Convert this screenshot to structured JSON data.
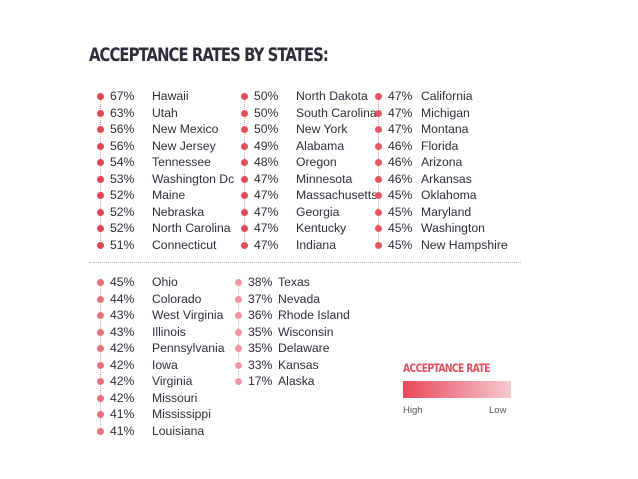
{
  "title": "ACCEPTANCE RATES BY STATES:",
  "colors": {
    "high": "#e8485a",
    "low": "#f6c8cf"
  },
  "columns": [
    {
      "rows": [
        {
          "pct": "67%",
          "state": "Hawaii",
          "color": "#e54455"
        },
        {
          "pct": "63%",
          "state": "Utah",
          "color": "#e54455"
        },
        {
          "pct": "56%",
          "state": "New Mexico",
          "color": "#e54455"
        },
        {
          "pct": "56%",
          "state": "New Jersey",
          "color": "#e54455"
        },
        {
          "pct": "54%",
          "state": "Tennessee",
          "color": "#e54455"
        },
        {
          "pct": "53%",
          "state": "Washington Dc",
          "color": "#e54455"
        },
        {
          "pct": "52%",
          "state": "Maine",
          "color": "#e54455"
        },
        {
          "pct": "52%",
          "state": "Nebraska",
          "color": "#e54455"
        },
        {
          "pct": "52%",
          "state": "North Carolina",
          "color": "#e54455"
        },
        {
          "pct": "51%",
          "state": "Connecticut",
          "color": "#e54455"
        }
      ]
    },
    {
      "rows": [
        {
          "pct": "50%",
          "state": "North Dakota",
          "color": "#e54c5c"
        },
        {
          "pct": "50%",
          "state": "South Carolina",
          "color": "#e54c5c"
        },
        {
          "pct": "50%",
          "state": "New York",
          "color": "#e54c5c"
        },
        {
          "pct": "49%",
          "state": "Alabama",
          "color": "#e54c5c"
        },
        {
          "pct": "48%",
          "state": "Oregon",
          "color": "#e54c5c"
        },
        {
          "pct": "47%",
          "state": "Minnesota",
          "color": "#e54c5c"
        },
        {
          "pct": "47%",
          "state": "Massachusetts",
          "color": "#e54c5c"
        },
        {
          "pct": "47%",
          "state": "Georgia",
          "color": "#e54c5c"
        },
        {
          "pct": "47%",
          "state": "Kentucky",
          "color": "#e54c5c"
        },
        {
          "pct": "47%",
          "state": "Indiana",
          "color": "#e54c5c"
        }
      ]
    },
    {
      "rows": [
        {
          "pct": "47%",
          "state": "California",
          "color": "#e65565"
        },
        {
          "pct": "47%",
          "state": "Michigan",
          "color": "#e65565"
        },
        {
          "pct": "47%",
          "state": "Montana",
          "color": "#e65565"
        },
        {
          "pct": "46%",
          "state": "Florida",
          "color": "#e65565"
        },
        {
          "pct": "46%",
          "state": "Arizona",
          "color": "#e65565"
        },
        {
          "pct": "46%",
          "state": "Arkansas",
          "color": "#e65565"
        },
        {
          "pct": "45%",
          "state": "Oklahoma",
          "color": "#e65565"
        },
        {
          "pct": "45%",
          "state": "Maryland",
          "color": "#e65565"
        },
        {
          "pct": "45%",
          "state": "Washington",
          "color": "#e65565"
        },
        {
          "pct": "45%",
          "state": "New Hampshire",
          "color": "#e65565"
        }
      ]
    },
    {
      "rows": [
        {
          "pct": "45%",
          "state": "Ohio",
          "color": "#ec7180"
        },
        {
          "pct": "44%",
          "state": "Colorado",
          "color": "#ec7180"
        },
        {
          "pct": "43%",
          "state": "West Virginia",
          "color": "#ec7180"
        },
        {
          "pct": "43%",
          "state": "Illinois",
          "color": "#ec7180"
        },
        {
          "pct": "42%",
          "state": "Pennsylvania",
          "color": "#ec7180"
        },
        {
          "pct": "42%",
          "state": "Iowa",
          "color": "#ec7180"
        },
        {
          "pct": "42%",
          "state": "Virginia",
          "color": "#ec7180"
        },
        {
          "pct": "42%",
          "state": "Missouri",
          "color": "#ec7180"
        },
        {
          "pct": "41%",
          "state": "Mississippi",
          "color": "#ec7180"
        },
        {
          "pct": "41%",
          "state": "Louisiana",
          "color": "#ec7180"
        }
      ]
    },
    {
      "rows": [
        {
          "pct": "38%",
          "state": "Texas",
          "color": "#f096a2"
        },
        {
          "pct": "37%",
          "state": "Nevada",
          "color": "#f096a2"
        },
        {
          "pct": "36%",
          "state": "Rhode Island",
          "color": "#f096a2"
        },
        {
          "pct": "35%",
          "state": "Wisconsin",
          "color": "#f096a2"
        },
        {
          "pct": "35%",
          "state": "Delaware",
          "color": "#f096a2"
        },
        {
          "pct": "33%",
          "state": "Kansas",
          "color": "#f096a2"
        },
        {
          "pct": "17%",
          "state": "Alaska",
          "color": "#f096a2"
        }
      ]
    }
  ],
  "legend": {
    "title": "ACCEPTANCE RATE",
    "high": "High",
    "low": "Low"
  }
}
